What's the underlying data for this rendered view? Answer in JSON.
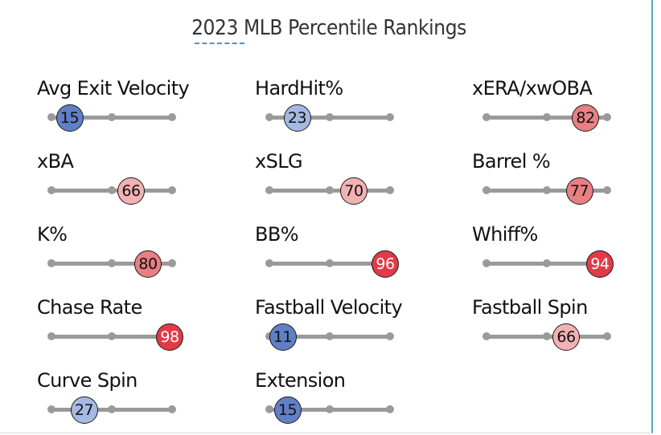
{
  "chart_data": {
    "type": "scatter",
    "title": "2023 MLB Percentile Rankings",
    "xlim": [
      0,
      100
    ],
    "tick_values": [
      0,
      50,
      100
    ],
    "metrics": [
      {
        "label": "Avg Exit Velocity",
        "percentile": 15
      },
      {
        "label": "HardHit%",
        "percentile": 23
      },
      {
        "label": "xERA/xwOBA",
        "percentile": 82
      },
      {
        "label": "xBA",
        "percentile": 66
      },
      {
        "label": "xSLG",
        "percentile": 70
      },
      {
        "label": "Barrel %",
        "percentile": 77
      },
      {
        "label": "K%",
        "percentile": 80
      },
      {
        "label": "BB%",
        "percentile": 96
      },
      {
        "label": "Whiff%",
        "percentile": 94
      },
      {
        "label": "Chase Rate",
        "percentile": 98
      },
      {
        "label": "Fastball Velocity",
        "percentile": 11
      },
      {
        "label": "Fastball Spin",
        "percentile": 66
      },
      {
        "label": "Curve Spin",
        "percentile": 27
      },
      {
        "label": "Extension",
        "percentile": 15
      }
    ]
  },
  "colors": {
    "low_strong": "#5f7fc7",
    "low_light": "#a5b9e2",
    "high_light": "#f2b1b3",
    "high_mid": "#e87f82",
    "high_strong": "#e23a47",
    "track": "#9a9a9a"
  }
}
